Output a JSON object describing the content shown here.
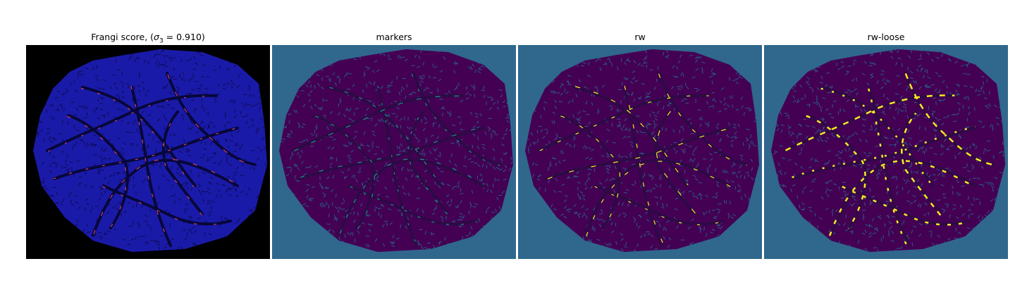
{
  "figure": {
    "panels": [
      {
        "id": "frangi",
        "title_prefix": "Frangi score, (",
        "title_sigma": "σ",
        "title_sub": "3",
        "title_suffix": " = 0.910)",
        "background": "#000000",
        "tissue": "#1a1aa8",
        "mesh": "#0b0b55",
        "vessel": "#07073a",
        "highlight": "#c8407a"
      },
      {
        "id": "markers",
        "title": "markers",
        "background": "#30678d",
        "tissue": "#440154",
        "mesh": "#2a5c84",
        "vessel": "#2d0a45",
        "highlight": "#21918c"
      },
      {
        "id": "rw",
        "title": "rw",
        "background": "#30678d",
        "tissue": "#440154",
        "mesh": "#2a5c84",
        "vessel": "#2d0a45",
        "highlight": "#fde725"
      },
      {
        "id": "rw-loose",
        "title": "rw-loose",
        "background": "#30678d",
        "tissue": "#440154",
        "mesh": "#2a5c84",
        "vessel": "#2d0a45",
        "highlight": "#fde725"
      }
    ]
  }
}
